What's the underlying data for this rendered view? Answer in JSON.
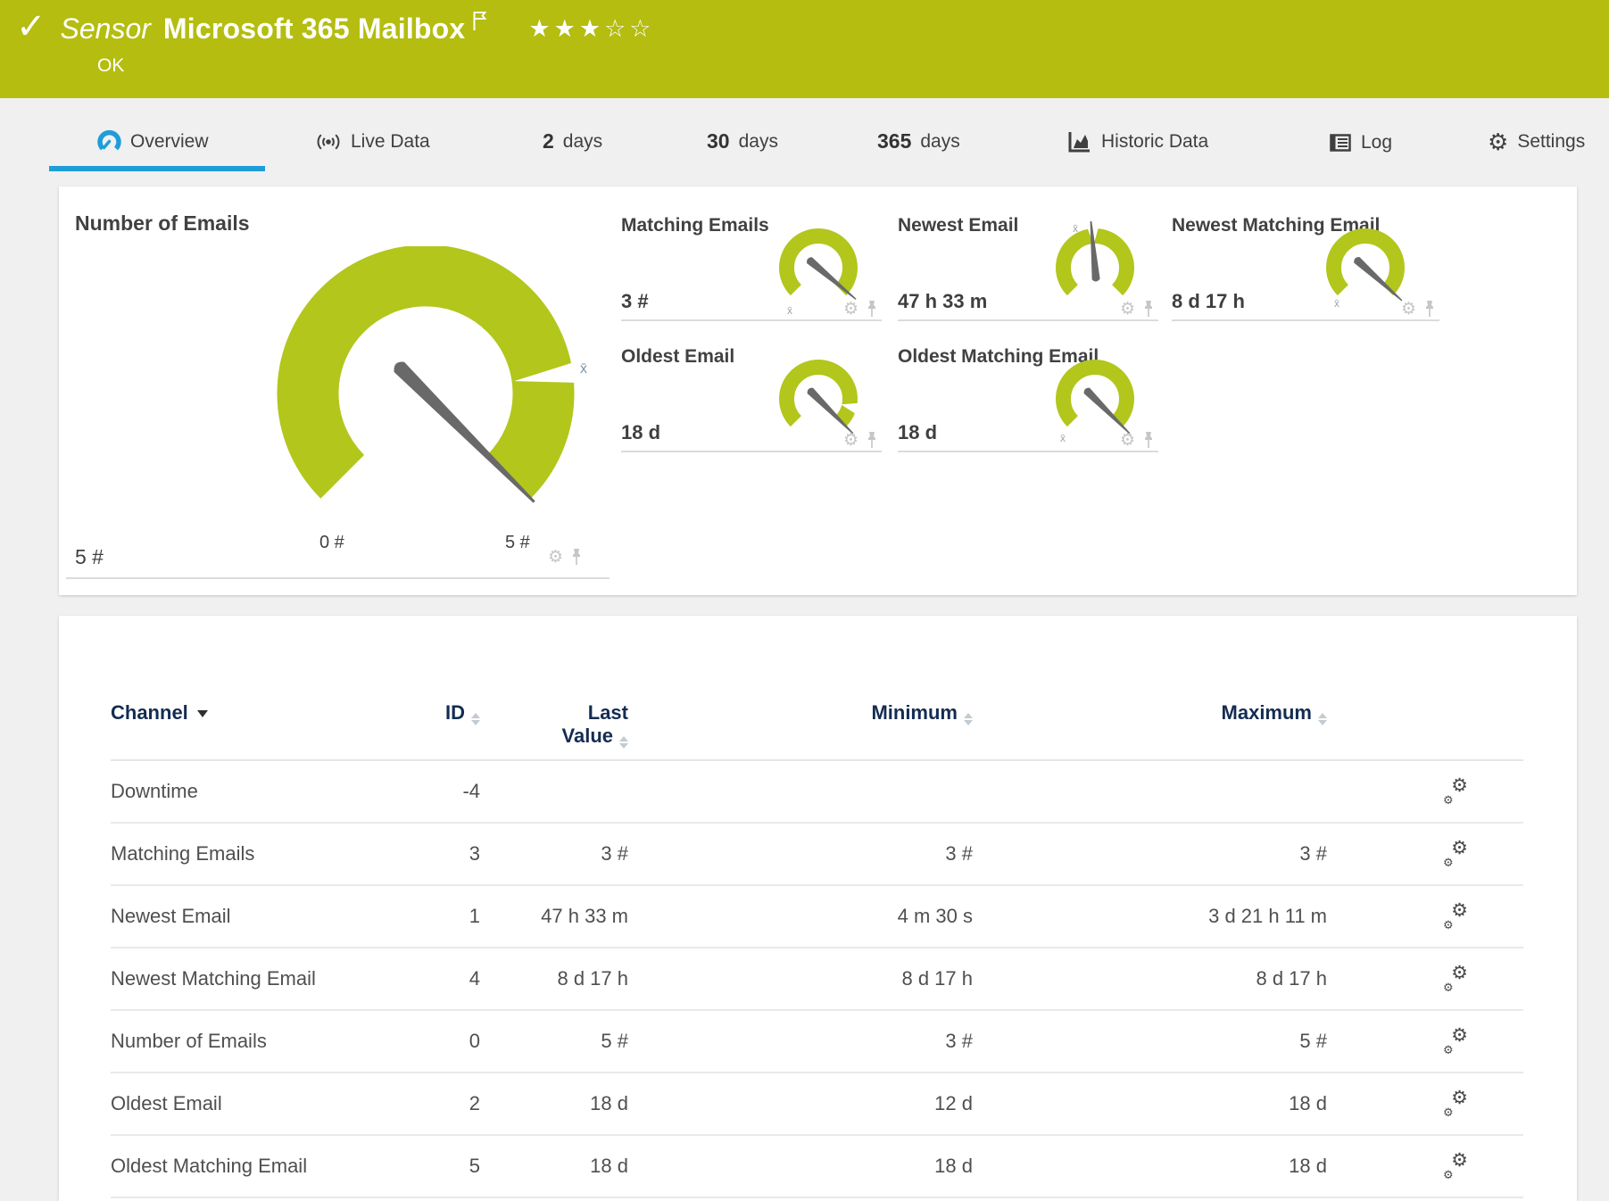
{
  "header": {
    "kind_label": "Sensor",
    "title": "Microsoft 365 Mailbox",
    "status_text": "OK",
    "rating": {
      "filled": 3,
      "total": 5
    }
  },
  "icons": {
    "check": "✓",
    "gear": "⚙",
    "star_filled": "★",
    "star_empty": "☆",
    "avg": "x̄"
  },
  "colors": {
    "status_up_green": "#b4bd10",
    "gauge_green": "#b2c61c",
    "accent_blue": "#1e9dd8"
  },
  "tabs": [
    {
      "label": "Overview",
      "active": true
    },
    {
      "label": "Live Data"
    },
    {
      "num": "2",
      "label": "days"
    },
    {
      "num": "30",
      "label": "days"
    },
    {
      "num": "365",
      "label": "days"
    },
    {
      "label": "Historic Data"
    },
    {
      "label": "Log"
    },
    {
      "label": "Settings"
    }
  ],
  "gauges": {
    "primary": {
      "title": "Number of Emails",
      "value": "5 #",
      "scale_min": "0 #",
      "scale_max": "5 #"
    },
    "small": [
      {
        "title": "Matching Emails",
        "value": "3 #"
      },
      {
        "title": "Newest Email",
        "value": "47 h 33 m"
      },
      {
        "title": "Newest Matching Email",
        "value": "8 d 17 h"
      },
      {
        "title": "Oldest Email",
        "value": "18 d"
      },
      {
        "title": "Oldest Matching Email",
        "value": "18 d"
      }
    ]
  },
  "chart_data": {
    "type": "gauge",
    "gauges": [
      {
        "title": "Number of Emails",
        "value": 5,
        "min": 0,
        "max": 5,
        "unit": "#"
      },
      {
        "title": "Matching Emails",
        "value": "3 #"
      },
      {
        "title": "Newest Email",
        "value": "47 h 33 m"
      },
      {
        "title": "Newest Matching Email",
        "value": "8 d 17 h"
      },
      {
        "title": "Oldest Email",
        "value": "18 d"
      },
      {
        "title": "Oldest Matching Email",
        "value": "18 d"
      }
    ]
  },
  "table": {
    "columns": {
      "channel": "Channel",
      "id": "ID",
      "last_line1": "Last",
      "last_line2": "Value",
      "min": "Minimum",
      "max": "Maximum"
    },
    "rows": [
      {
        "channel": "Downtime",
        "id": "-4",
        "last": "",
        "min": "",
        "max": ""
      },
      {
        "channel": "Matching Emails",
        "id": "3",
        "last": "3 #",
        "min": "3 #",
        "max": "3 #"
      },
      {
        "channel": "Newest Email",
        "id": "1",
        "last": "47 h 33 m",
        "min": "4 m 30 s",
        "max": "3 d 21 h 11 m"
      },
      {
        "channel": "Newest Matching Email",
        "id": "4",
        "last": "8 d 17 h",
        "min": "8 d 17 h",
        "max": "8 d 17 h"
      },
      {
        "channel": "Number of Emails",
        "id": "0",
        "last": "5 #",
        "min": "3 #",
        "max": "5 #"
      },
      {
        "channel": "Oldest Email",
        "id": "2",
        "last": "18 d",
        "min": "12 d",
        "max": "18 d"
      },
      {
        "channel": "Oldest Matching Email",
        "id": "5",
        "last": "18 d",
        "min": "18 d",
        "max": "18 d"
      }
    ]
  }
}
